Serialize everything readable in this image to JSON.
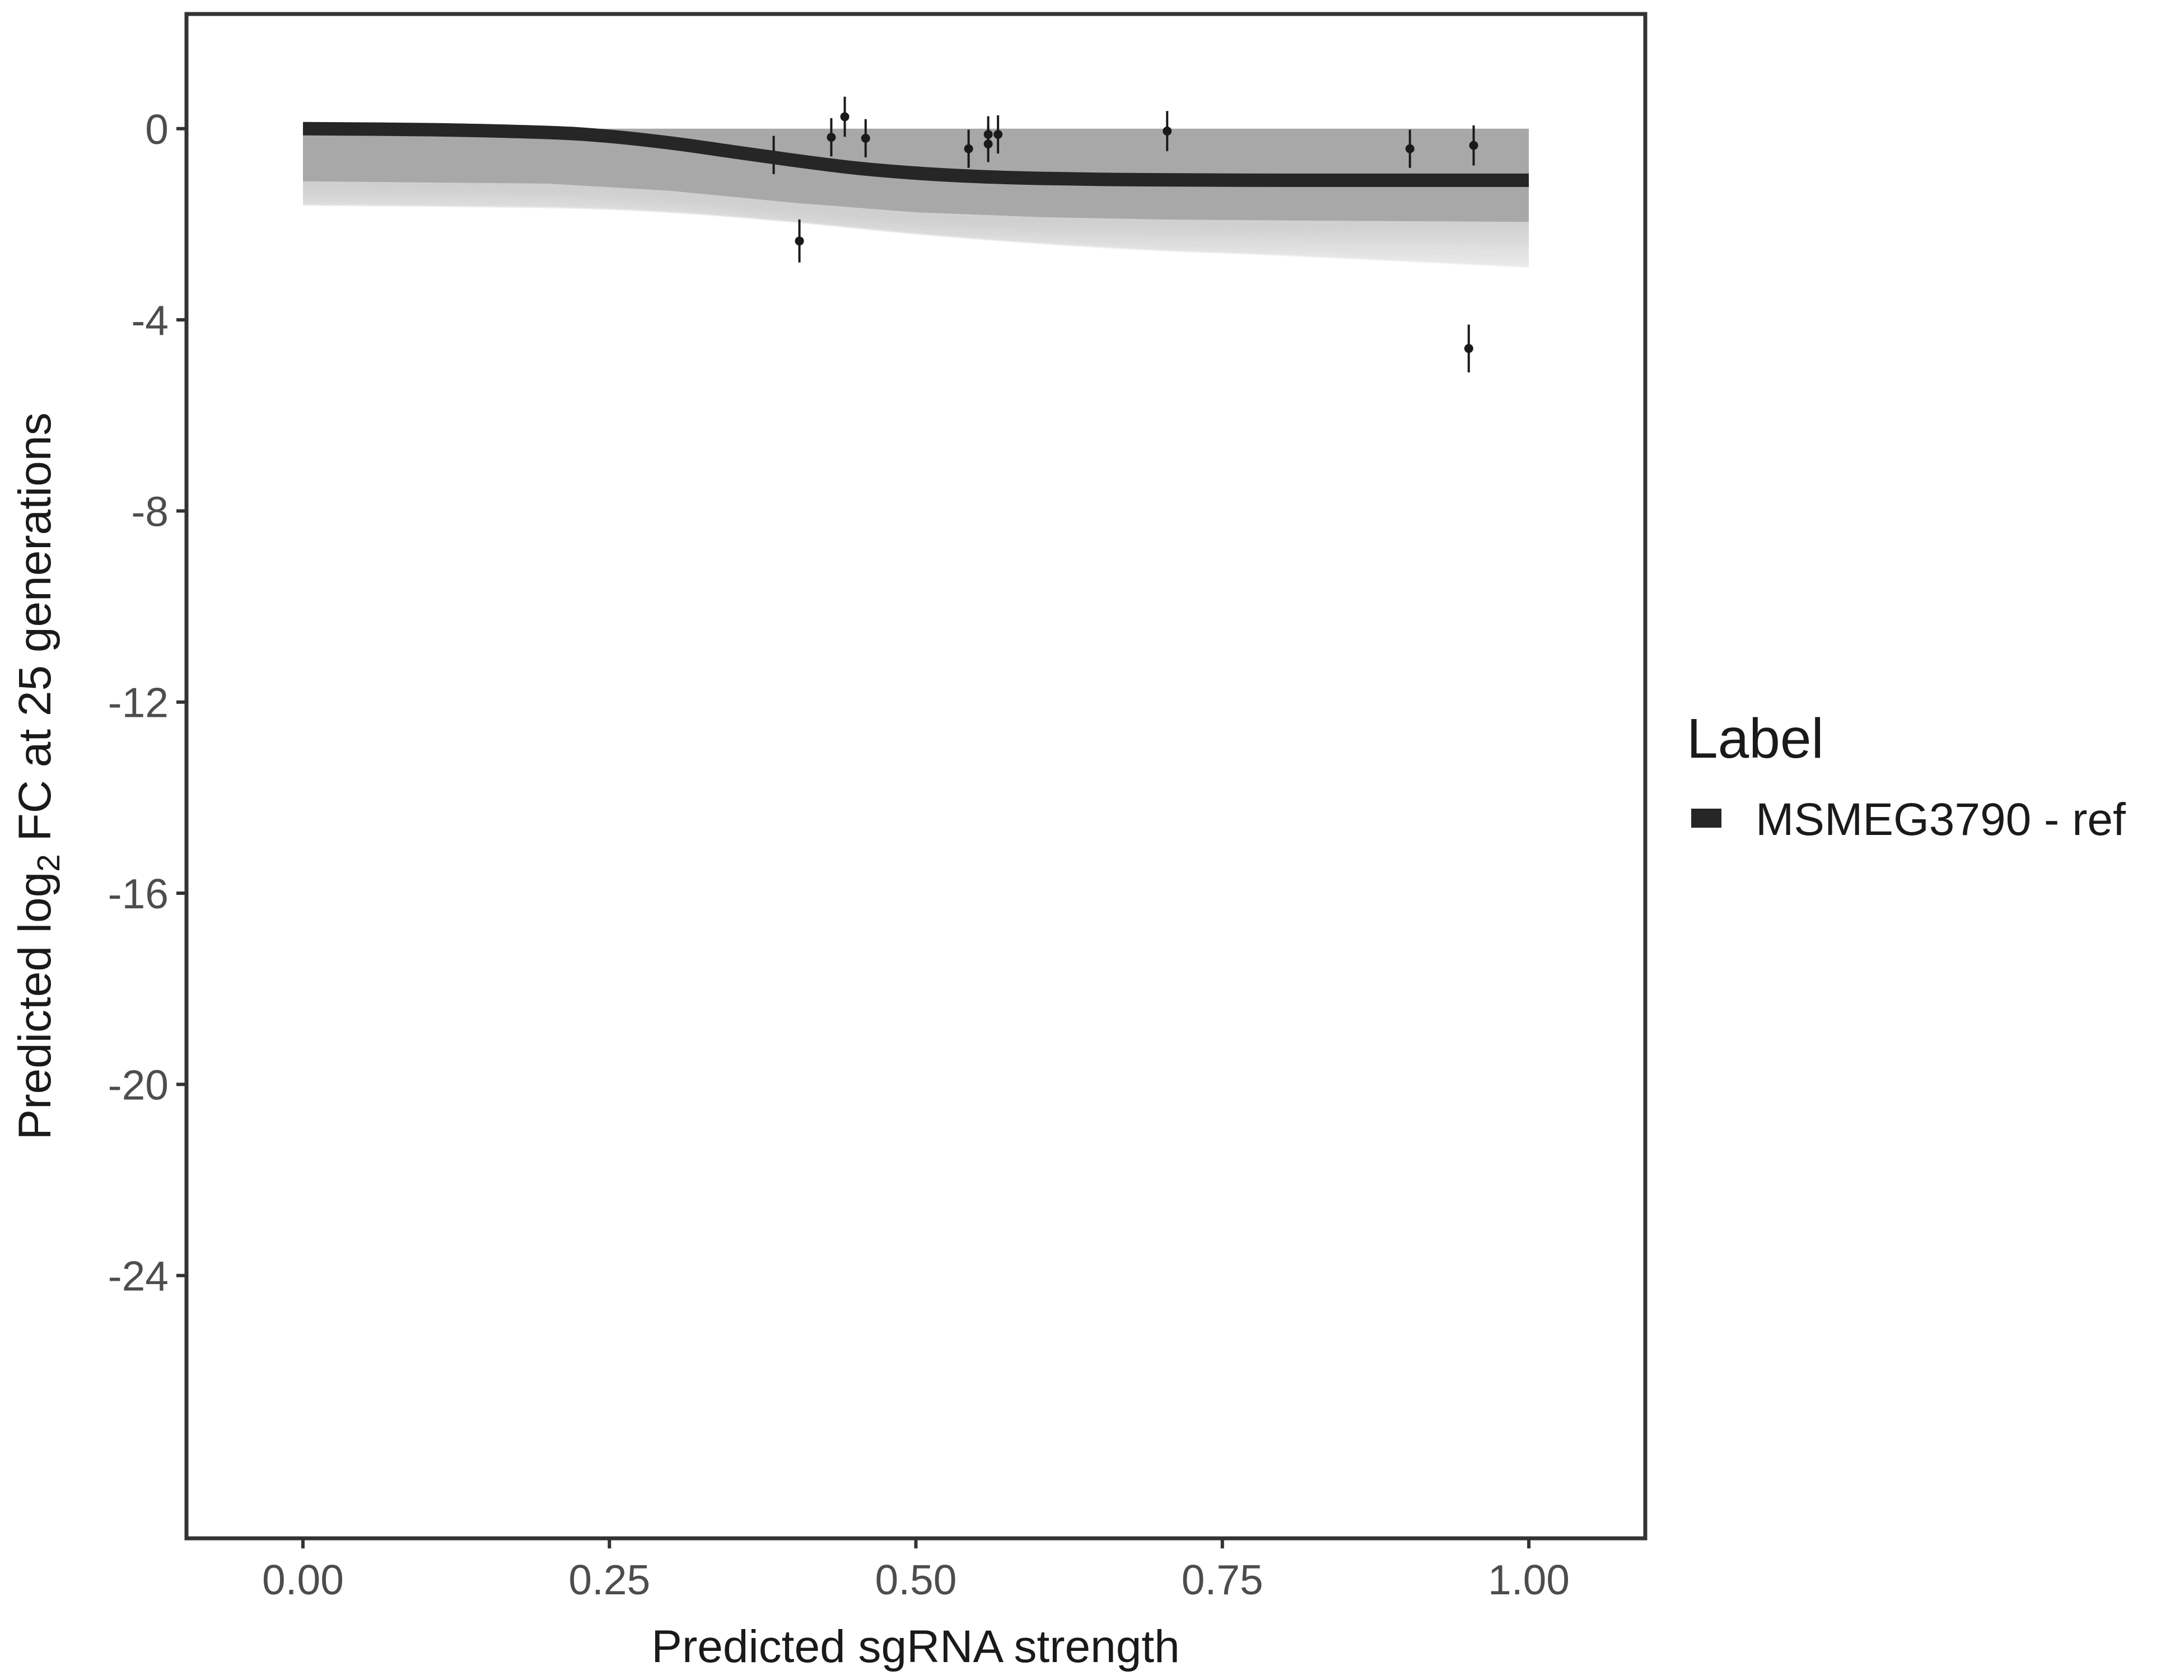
{
  "chart_data": {
    "type": "line",
    "xlabel": "Predicted sgRNA strength",
    "ylabel": {
      "prefix": "Predicted  log",
      "subscript": "2",
      "suffix": " FC at 25 generations"
    },
    "xlim": [
      -0.095,
      1.095
    ],
    "ylim": [
      -29.5,
      2.4
    ],
    "x_ticks": [
      0,
      0.25,
      0.5,
      0.75,
      1
    ],
    "x_tick_labels": [
      "0.00",
      "0.25",
      "0.50",
      "0.75",
      "1.00"
    ],
    "y_ticks": [
      0,
      -4,
      -8,
      -12,
      -16,
      -20,
      -24
    ],
    "y_tick_labels": [
      "0",
      "-4",
      "-8",
      "-12",
      "-16",
      "-20",
      "-24"
    ],
    "grid": false,
    "legend": {
      "title": "Label",
      "position": "right",
      "entries": [
        {
          "label": "MSMEG3790 - ref",
          "color": "#262626"
        }
      ]
    },
    "series": [
      {
        "name": "MSMEG3790 - ref",
        "role": "fitted curve",
        "color": "#262626",
        "x": [
          0,
          0.1,
          0.2,
          0.25,
          0.3,
          0.35,
          0.4,
          0.45,
          0.5,
          0.55,
          0.6,
          0.65,
          0.7,
          0.8,
          0.9,
          1.0
        ],
        "y": [
          0,
          -0.02,
          -0.08,
          -0.16,
          -0.3,
          -0.48,
          -0.66,
          -0.82,
          -0.93,
          -1.0,
          -1.04,
          -1.06,
          -1.07,
          -1.08,
          -1.08,
          -1.08
        ]
      }
    ],
    "ribbon": {
      "color": "#a8a8a8",
      "x": [
        0,
        0.2,
        0.3,
        0.4,
        0.5,
        0.6,
        0.7,
        0.8,
        1.0
      ],
      "upper": [
        0,
        0,
        0,
        0,
        0,
        0,
        0,
        0,
        0
      ],
      "lower": [
        -1.1,
        -1.15,
        -1.3,
        -1.55,
        -1.75,
        -1.85,
        -1.9,
        -1.92,
        -1.95
      ]
    },
    "posterior_draws": {
      "color": "#d0d0d0",
      "count": 60,
      "x": [
        0,
        0.2,
        0.3,
        0.4,
        0.5,
        0.6,
        0.7,
        0.8,
        1.0
      ],
      "lowest": [
        -1.6,
        -1.65,
        -1.75,
        -1.95,
        -2.2,
        -2.4,
        -2.55,
        -2.65,
        -2.9
      ]
    },
    "points": [
      {
        "x": 0.384,
        "y": -0.55,
        "err": 0.4
      },
      {
        "x": 0.405,
        "y": -2.35,
        "err": 0.45
      },
      {
        "x": 0.431,
        "y": -0.18,
        "err": 0.4
      },
      {
        "x": 0.442,
        "y": 0.25,
        "err": 0.42
      },
      {
        "x": 0.459,
        "y": -0.2,
        "err": 0.4
      },
      {
        "x": 0.543,
        "y": -0.42,
        "err": 0.4
      },
      {
        "x": 0.559,
        "y": -0.12,
        "err": 0.38
      },
      {
        "x": 0.559,
        "y": -0.32,
        "err": 0.38
      },
      {
        "x": 0.567,
        "y": -0.12,
        "err": 0.4
      },
      {
        "x": 0.705,
        "y": -0.05,
        "err": 0.42
      },
      {
        "x": 0.903,
        "y": -0.42,
        "err": 0.4
      },
      {
        "x": 0.951,
        "y": -4.6,
        "err": 0.5
      },
      {
        "x": 0.955,
        "y": -0.35,
        "err": 0.42
      }
    ]
  }
}
